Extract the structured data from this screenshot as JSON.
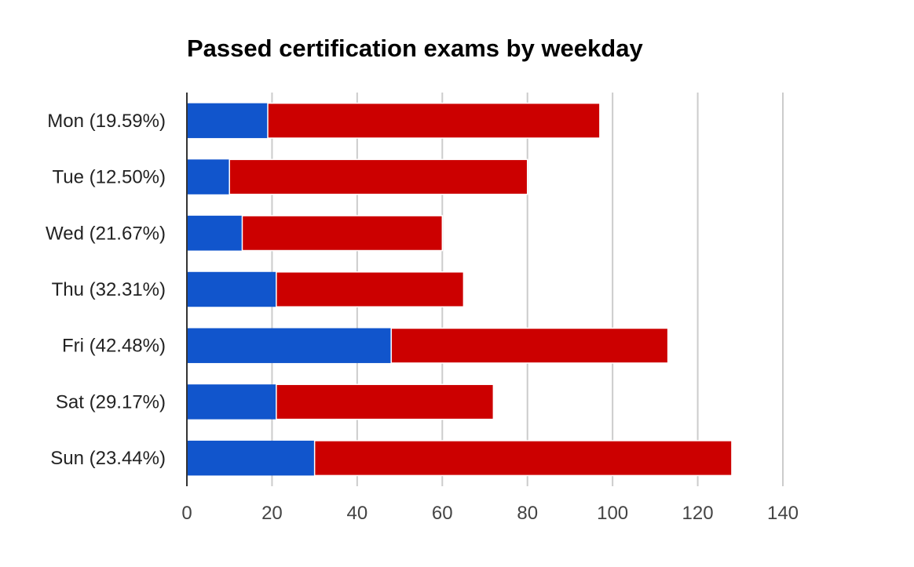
{
  "chart_data": {
    "type": "bar",
    "orientation": "horizontal",
    "stacked": true,
    "title": "Passed certification exams by weekday",
    "xlabel": "",
    "ylabel": "",
    "categories": [
      "Mon (19.59%)",
      "Tue (12.50%)",
      "Wed (21.67%)",
      "Thu (32.31%)",
      "Fri (42.48%)",
      "Sat (29.17%)",
      "Sun (23.44%)"
    ],
    "series": [
      {
        "color": "#1155cc",
        "values": [
          19,
          10,
          13,
          21,
          48,
          21,
          30
        ]
      },
      {
        "color": "#cc0000",
        "values": [
          78,
          70,
          47,
          44,
          65,
          51,
          98
        ]
      }
    ],
    "xlim": [
      0,
      140
    ],
    "ticks": [
      0,
      20,
      40,
      60,
      80,
      100,
      120,
      140
    ],
    "grid": true,
    "legend": "none"
  }
}
